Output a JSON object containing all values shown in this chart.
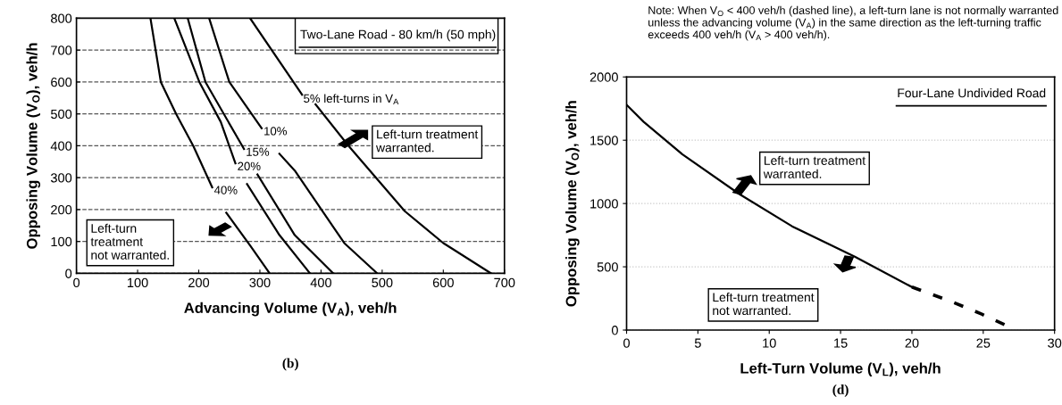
{
  "chart_data": [
    {
      "type": "line",
      "title": "Two-Lane Road - 80 km/h (50 mph)",
      "xlabel": "Advancing Volume (V$_{A}$), veh/h",
      "ylabel": "Opposing Volume (V$_{O}$), veh/h",
      "series": [
        {
          "name": "40%",
          "color": "#000000",
          "x": [
            121,
            138,
            163,
            191,
            222,
            null,
            245,
            285,
            316
          ],
          "values": [
            800,
            600,
            500,
            400,
            270,
            null,
            190,
            85,
            0
          ]
        },
        {
          "name": "20%",
          "color": "#000000",
          "x": [
            160,
            201,
            236,
            260,
            null,
            279,
            332,
            382
          ],
          "values": [
            800,
            600,
            475,
            345,
            null,
            280,
            120,
            0
          ]
        },
        {
          "name": "15%",
          "color": "#000000",
          "x": [
            182,
            211,
            274,
            null,
            296,
            357,
            420
          ],
          "values": [
            800,
            600,
            390,
            null,
            310,
            120,
            0
          ]
        },
        {
          "name": "10%",
          "color": "#000000",
          "x": [
            217,
            250,
            303,
            null,
            332,
            358,
            438,
            492
          ],
          "values": [
            800,
            600,
            455,
            null,
            375,
            320,
            95,
            0
          ]
        },
        {
          "name": "5% left-turns in V$_{A}$",
          "color": "#000000",
          "x": [
            284,
            369,
            null,
            391,
            445,
            537,
            600,
            678
          ],
          "values": [
            800,
            560,
            null,
            530,
            400,
            195,
            95,
            0
          ]
        }
      ],
      "xlim": [
        0,
        700
      ],
      "ylim": [
        0,
        800
      ],
      "xticks": [
        0,
        100,
        200,
        300,
        400,
        500,
        600,
        700
      ],
      "yticks": [
        0,
        100,
        200,
        300,
        400,
        500,
        600,
        700,
        800
      ],
      "grid": "y",
      "legend": false,
      "marker": "none",
      "annotations": [
        "Left-turn treatment\nwarranted.",
        "Left-turn\ntreatment\nnot warranted.",
        "(b)"
      ]
    },
    {
      "type": "line",
      "title": "Four-Lane Undivided Road",
      "xlabel": "Left-Turn Volume (V$_{L}$), veh/h",
      "ylabel": "Opposing Volume (V$_{O}$), veh/h",
      "series": [
        {
          "color": "#000000",
          "x": [
            0,
            1.2,
            3.9,
            7.9,
            11.6,
            16,
            20
          ],
          "values": [
            1780,
            1645,
            1390,
            1075,
            820,
            580,
            340
          ]
        },
        {
          "color": "#000000",
          "line_style": "dashed",
          "x": [
            20,
            22.7,
            24.9,
            27.3
          ],
          "values": [
            340,
            228,
            126,
            0
          ]
        }
      ],
      "xlim": [
        0,
        30
      ],
      "ylim": [
        0,
        2000
      ],
      "xticks": [
        0,
        5,
        10,
        15,
        20,
        25,
        30
      ],
      "yticks": [
        0,
        500,
        1000,
        1500,
        2000
      ],
      "grid": "y",
      "legend": false,
      "marker": "none",
      "annotations": [
        "Left-turn treatment\nwarranted.",
        "Left-turn treatment\nnot warranted.",
        "(d)",
        "Note: When V$_{O}$ < 400 veh/h (dashed line), a left-turn lane is not normally warranted unless the advancing volume (V$_{A}$) in the same direction as the left-turning traffic exceeds 400 veh/h (V$_{A}$ > 400 veh/h)."
      ]
    }
  ]
}
